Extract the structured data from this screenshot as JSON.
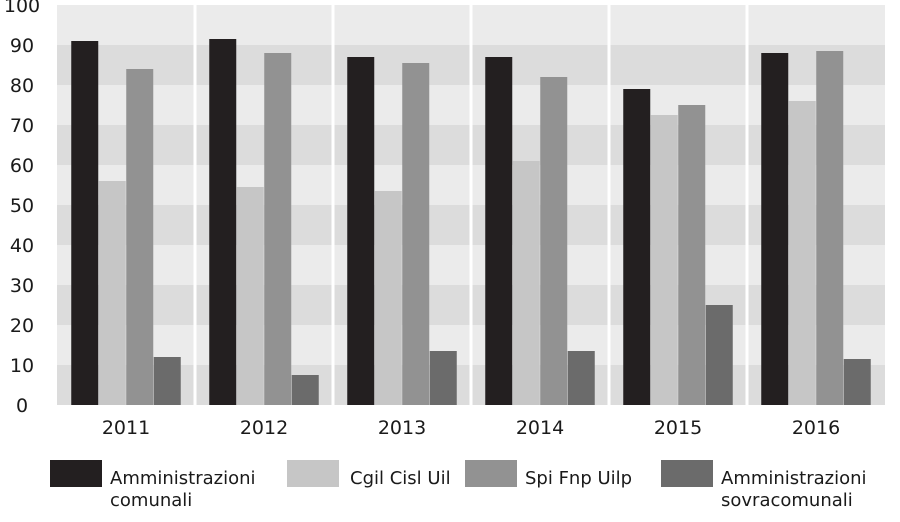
{
  "chart_data": {
    "type": "bar",
    "title": "",
    "xlabel": "",
    "ylabel": "",
    "ylim": [
      0,
      100
    ],
    "yticks": [
      0,
      10,
      20,
      30,
      40,
      50,
      60,
      70,
      80,
      90,
      100
    ],
    "grid": "horizontal alternating bands",
    "legend_position": "bottom",
    "categories": [
      "2011",
      "2012",
      "2013",
      "2014",
      "2015",
      "2016"
    ],
    "series": [
      {
        "name": "Amministrazioni comunali",
        "legend_lines": [
          "Amministrazioni",
          "comunali"
        ],
        "color": "#231f20",
        "values": [
          91,
          91.5,
          87,
          87,
          79,
          88
        ]
      },
      {
        "name": "Cgil Cisl Uil",
        "legend_lines": [
          "Cgil Cisl Uil"
        ],
        "color": "#c6c6c6",
        "values": [
          56,
          54.5,
          53.5,
          61,
          72.5,
          76
        ]
      },
      {
        "name": "Spi Fnp Uilp",
        "legend_lines": [
          "Spi Fnp Uilp"
        ],
        "color": "#929292",
        "values": [
          84,
          88,
          85.5,
          82,
          75,
          88.5
        ]
      },
      {
        "name": "Amministrazioni sovracomunali",
        "legend_lines": [
          "Amministrazioni",
          "sovracomunali"
        ],
        "color": "#6b6b6b",
        "values": [
          12,
          7.5,
          13.5,
          13.5,
          25,
          11.5
        ]
      }
    ]
  },
  "colors": {
    "band_dark": "#dcdcdc",
    "band_light": "#ebebeb",
    "separator": "#ffffff",
    "text": "#1a1a1a"
  }
}
